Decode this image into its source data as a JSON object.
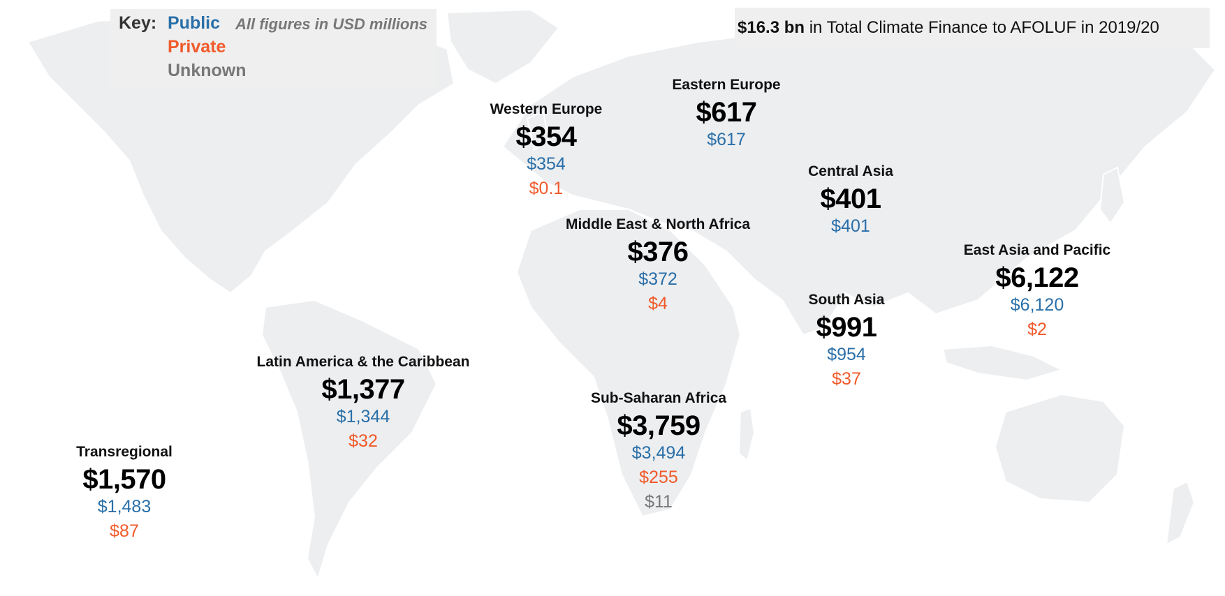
{
  "key": {
    "title": "Key:",
    "public_label": "Public",
    "private_label": "Private",
    "unknown_label": "Unknown",
    "note": "All figures in USD millions"
  },
  "colors": {
    "public": "#2a6fa8",
    "private": "#f05a2b",
    "unknown": "#777777",
    "land": "#eceef0"
  },
  "total": {
    "amount": "$16.3 bn",
    "text": "in Total Climate Finance to AFOLUF in 2019/20"
  },
  "regions": {
    "western_europe": {
      "name": "Western Europe",
      "total": "$354",
      "public": "$354",
      "private": "$0.1"
    },
    "eastern_europe": {
      "name": "Eastern Europe",
      "total": "$617",
      "public": "$617"
    },
    "central_asia": {
      "name": "Central Asia",
      "total": "$401",
      "public": "$401"
    },
    "mena": {
      "name": "Middle East & North Africa",
      "total": "$376",
      "public": "$372",
      "private": "$4"
    },
    "east_asia": {
      "name": "East Asia and Pacific",
      "total": "$6,122",
      "public": "$6,120",
      "private": "$2"
    },
    "south_asia": {
      "name": "South Asia",
      "total": "$991",
      "public": "$954",
      "private": "$37"
    },
    "latin_america": {
      "name": "Latin America & the Caribbean",
      "total": "$1,377",
      "public": "$1,344",
      "private": "$32"
    },
    "ssa": {
      "name": "Sub-Saharan Africa",
      "total": "$3,759",
      "public": "$3,494",
      "private": "$255",
      "unknown": "$11"
    },
    "transregional": {
      "name": "Transregional",
      "total": "$1,570",
      "public": "$1,483",
      "private": "$87"
    }
  }
}
